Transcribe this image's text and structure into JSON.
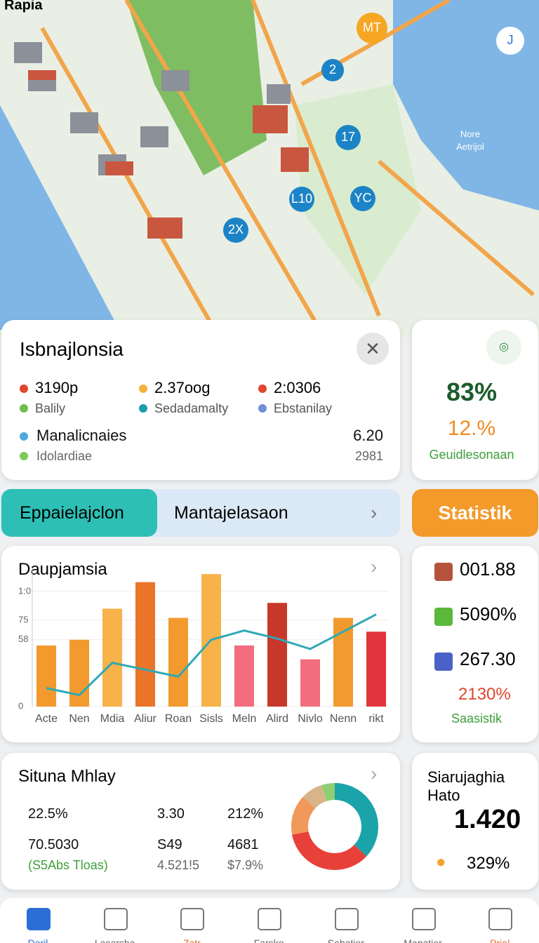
{
  "status_bar": {
    "app": "Rapia"
  },
  "map": {
    "pins": [
      "MT",
      "2",
      "17",
      "YC",
      "L10",
      "2X",
      "J"
    ],
    "area_label": [
      "Nore",
      "Aetrijol"
    ]
  },
  "info_card": {
    "title": "Isbnajlonsia",
    "stats": [
      {
        "value": "3190p",
        "label": "Balily",
        "color": "#e0452e",
        "label_color": "#6dbf4b"
      },
      {
        "value": "2.37oog",
        "label": "Sedadamalty",
        "color": "#f4b23c",
        "label_color": "#1b9bb0"
      },
      {
        "value": "2:0306",
        "label": "Ebstanilay",
        "color": "#e0452e",
        "label_color": "#6f8fd6"
      }
    ],
    "rows": [
      {
        "label": "Manalicnaies",
        "value": "6.20",
        "color": "#4ea9e0"
      },
      {
        "label": "Idolardiae",
        "value": "2981",
        "color": "#7ccb5a"
      }
    ]
  },
  "score_card": {
    "primary": "83%",
    "secondary": "12.%",
    "label": "Geuidlesonaan"
  },
  "tabs": {
    "active": "Eppaielajclon",
    "second": "Mantajelasaon",
    "button": "Statistik"
  },
  "chart_card": {
    "title": "Daupjamsia",
    "chart": {
      "type": "bar",
      "categories": [
        "Acte",
        "Nen",
        "Mdia",
        "Aliur",
        "Roan",
        "Sisls",
        "Meln",
        "Alird",
        "Nivlo",
        "Nenn",
        "rikt"
      ],
      "values": [
        53,
        58,
        85,
        108,
        77,
        115,
        53,
        90,
        41,
        77,
        65
      ],
      "colors": [
        "#f29a2e",
        "#f29a2e",
        "#f7b24a",
        "#e9742a",
        "#f29a2e",
        "#f7b24a",
        "#f26d7d",
        "#c8382a",
        "#f26d7d",
        "#f29a2e",
        "#e2343d"
      ],
      "line": {
        "values": [
          16,
          10,
          38,
          32,
          26,
          58,
          66,
          59,
          50,
          65,
          80
        ],
        "color": "#2fa8b5"
      },
      "ylim": [
        0,
        120
      ],
      "yticks": [
        0,
        58,
        75,
        {
          "value": 100,
          "label": "1:0"
        }
      ]
    }
  },
  "side_stats": {
    "items": [
      "001.88",
      "5090%",
      "267.30"
    ],
    "highlight": "2130%",
    "label": "Saasistik"
  },
  "summary_card": {
    "title": "Situna Mhlay",
    "grid": [
      [
        "22.5%",
        "3.30",
        "212%"
      ],
      [
        "70.5030",
        "S49",
        "4681"
      ],
      [
        "(S5Abs Tloas)",
        "4.521!5",
        "$7.9%"
      ]
    ],
    "donut": {
      "type": "pie",
      "values": [
        37,
        35,
        15,
        8,
        5
      ],
      "colors": [
        "#1aa3a8",
        "#e8413a",
        "#f0995a",
        "#d9b48a",
        "#8fcf72"
      ]
    }
  },
  "side_card": {
    "title": [
      "Siarujaghia",
      "Hato"
    ],
    "value": "1.420",
    "percent": "329%"
  },
  "nav": [
    "Daril",
    "Lasarsha",
    "Zatr",
    "Farsko",
    "Sabatier",
    "Mapatier",
    "Prial"
  ]
}
